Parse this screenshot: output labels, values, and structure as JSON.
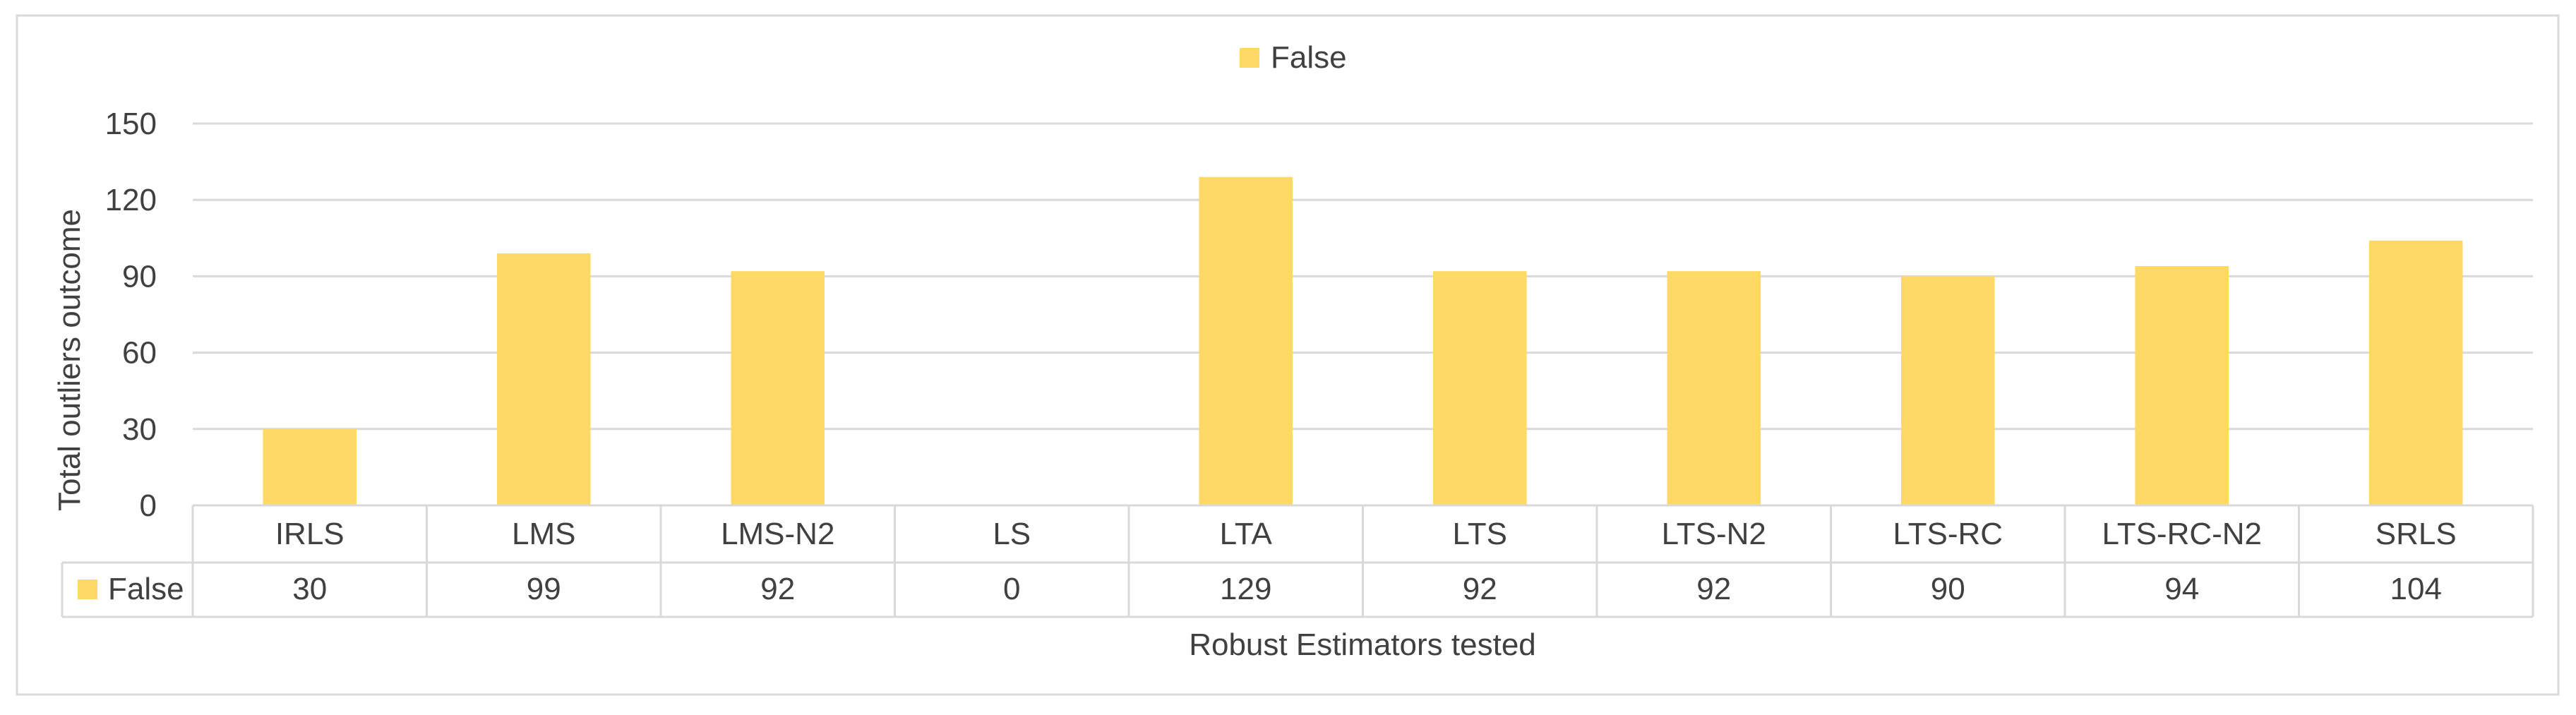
{
  "chart_data": {
    "type": "bar",
    "title": "",
    "xlabel": "Robust Estimators tested",
    "ylabel": "Total outliers outcome",
    "categories": [
      "IRLS",
      "LMS",
      "LMS-N2",
      "LS",
      "LTA",
      "LTS",
      "LTS-N2",
      "LTS-RC",
      "LTS-RC-N2",
      "SRLS"
    ],
    "series": [
      {
        "name": "False",
        "values": [
          30,
          99,
          92,
          0,
          129,
          92,
          92,
          90,
          94,
          104
        ],
        "color": "#FFD966"
      }
    ],
    "yticks": [
      0,
      30,
      60,
      90,
      120,
      150
    ],
    "ylim": [
      0,
      150
    ],
    "grid": true,
    "legend": "top-center",
    "data_table": true
  }
}
